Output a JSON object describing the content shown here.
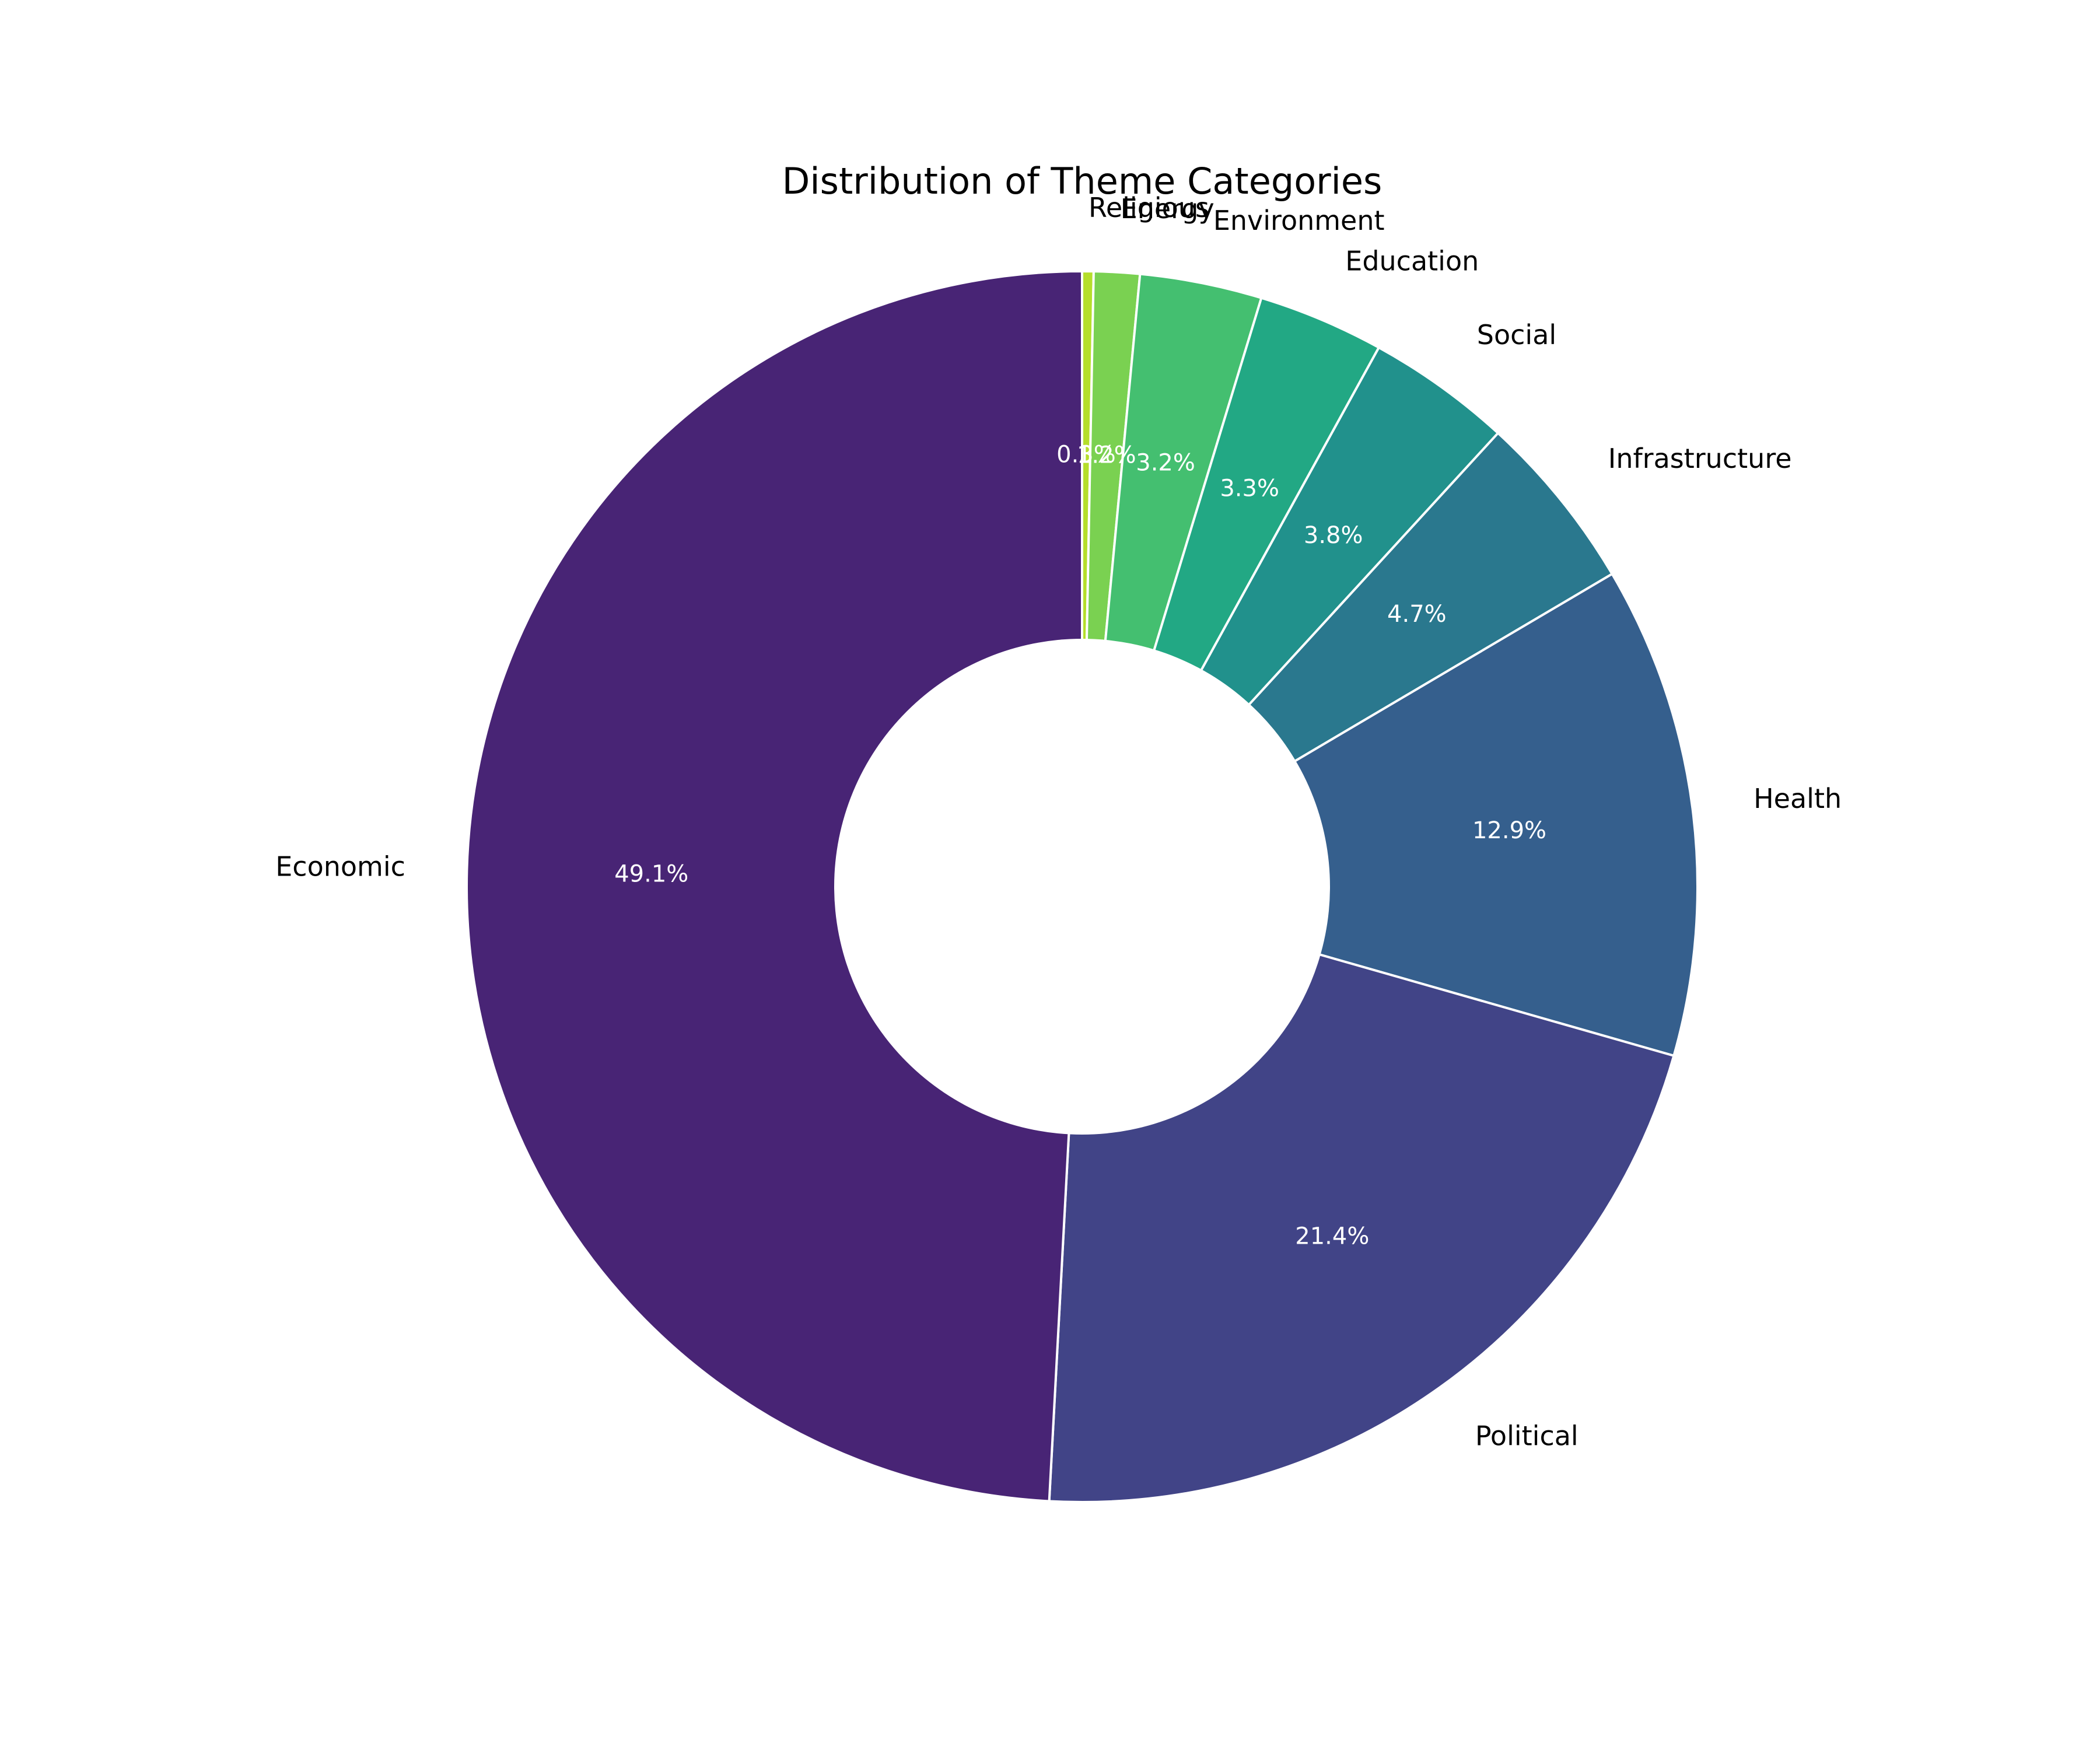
{
  "chart_data": {
    "type": "pie",
    "donut": true,
    "title": "Distribution of Theme Categories",
    "start_angle_deg": 90,
    "direction": "clockwise",
    "slices": [
      {
        "label": "Religious",
        "pct_label": "0.3%",
        "value": 0.3,
        "color": "#b5de2b"
      },
      {
        "label": "Energy",
        "pct_label": "1.2%",
        "value": 1.2,
        "color": "#7ad151"
      },
      {
        "label": "Environment",
        "pct_label": "3.2%",
        "value": 3.2,
        "color": "#44bf70"
      },
      {
        "label": "Education",
        "pct_label": "3.3%",
        "value": 3.3,
        "color": "#22a884"
      },
      {
        "label": "Social",
        "pct_label": "3.8%",
        "value": 3.8,
        "color": "#21918c"
      },
      {
        "label": "Infrastructure",
        "pct_label": "4.7%",
        "value": 4.7,
        "color": "#2a788e"
      },
      {
        "label": "Health",
        "pct_label": "12.9%",
        "value": 12.9,
        "color": "#355f8d"
      },
      {
        "label": "Political",
        "pct_label": "21.4%",
        "value": 21.4,
        "color": "#414487"
      },
      {
        "label": "Economic",
        "pct_label": "49.1%",
        "value": 49.1,
        "color": "#482475"
      }
    ]
  }
}
